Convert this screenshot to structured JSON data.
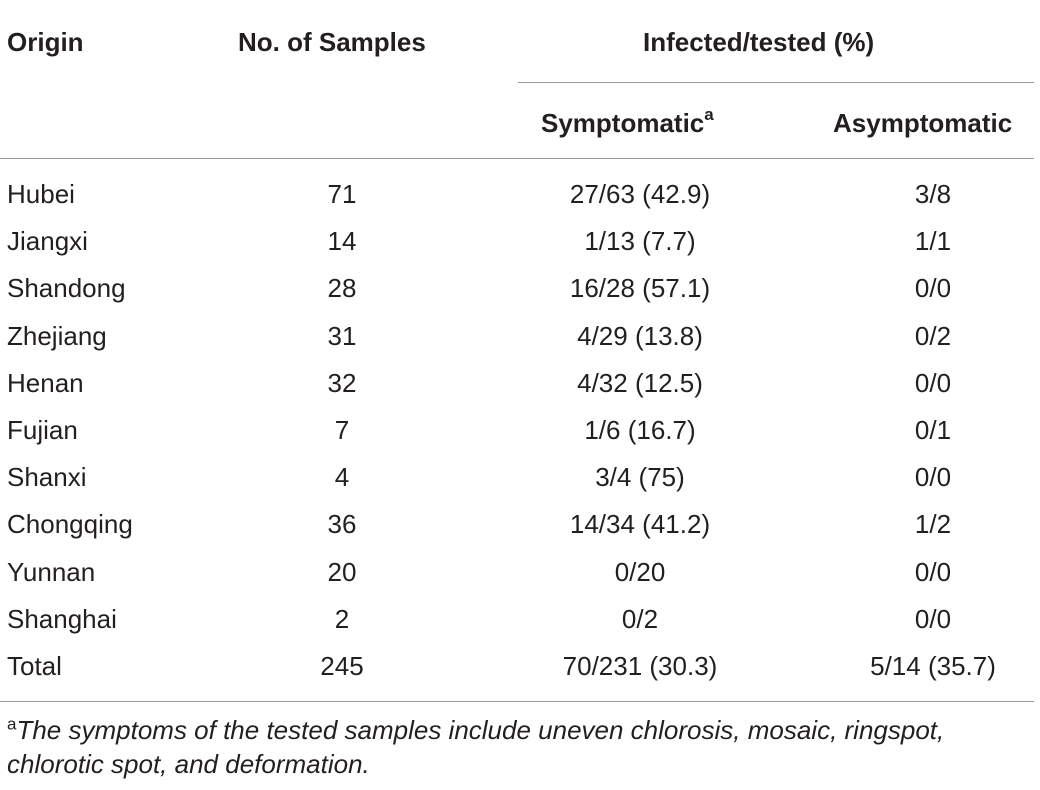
{
  "table": {
    "headers": {
      "origin": "Origin",
      "samples": "No. of Samples",
      "infected": "Infected/tested (%)",
      "symptomatic": "Symptomatic",
      "symptomatic_marker": "a",
      "asymptomatic": "Asymptomatic"
    },
    "rows": [
      {
        "origin": "Hubei",
        "samples": "71",
        "symptomatic": "27/63 (42.9)",
        "asymptomatic": "3/8"
      },
      {
        "origin": "Jiangxi",
        "samples": "14",
        "symptomatic": "1/13 (7.7)",
        "asymptomatic": "1/1"
      },
      {
        "origin": "Shandong",
        "samples": "28",
        "symptomatic": "16/28 (57.1)",
        "asymptomatic": "0/0"
      },
      {
        "origin": "Zhejiang",
        "samples": "31",
        "symptomatic": "4/29 (13.8)",
        "asymptomatic": "0/2"
      },
      {
        "origin": "Henan",
        "samples": "32",
        "symptomatic": "4/32 (12.5)",
        "asymptomatic": "0/0"
      },
      {
        "origin": "Fujian",
        "samples": "7",
        "symptomatic": "1/6 (16.7)",
        "asymptomatic": "0/1"
      },
      {
        "origin": "Shanxi",
        "samples": "4",
        "symptomatic": "3/4 (75)",
        "asymptomatic": "0/0"
      },
      {
        "origin": "Chongqing",
        "samples": "36",
        "symptomatic": "14/34 (41.2)",
        "asymptomatic": "1/2"
      },
      {
        "origin": "Yunnan",
        "samples": "20",
        "symptomatic": "0/20",
        "asymptomatic": "0/0"
      },
      {
        "origin": "Shanghai",
        "samples": "2",
        "symptomatic": "0/2",
        "asymptomatic": "0/0"
      },
      {
        "origin": "Total",
        "samples": "245",
        "symptomatic": "70/231 (30.3)",
        "asymptomatic": "5/14 (35.7)"
      }
    ],
    "footnote": {
      "marker": "a",
      "text": "The symptoms of the tested samples include uneven chlorosis, mosaic, ringspot, chlorotic spot, and deformation."
    }
  }
}
